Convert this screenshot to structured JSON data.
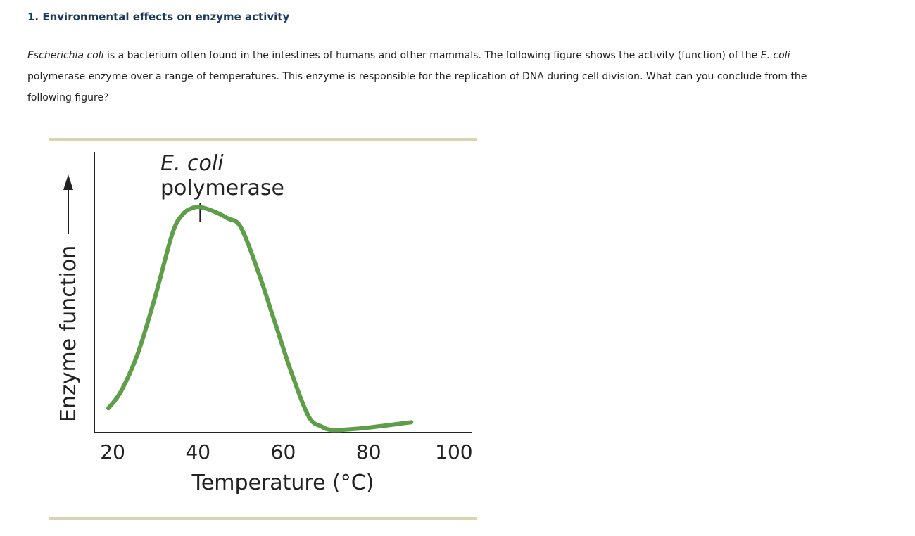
{
  "question": {
    "title": "1. Environmental effects on enzyme activity",
    "body": {
      "p1": "Escherichia coli",
      "p2": " is a bacterium often found in the intestines of humans and other mammals. The following figure shows the activity (function) of the ",
      "p3": "E. coli",
      "p4": " polymerase enzyme over a range of temperatures. This enzyme is responsible for the replication of DNA during cell division. What can you conclude from the following figure?"
    }
  },
  "colors": {
    "curve": "#5e9e48",
    "frame_rule": "#dcd3b0",
    "axis": "#222222"
  },
  "chart_data": {
    "type": "line",
    "title": "",
    "xlabel": "Temperature (°C)",
    "ylabel": "Enzyme function",
    "y_tick_labels": false,
    "xlim": [
      10,
      110
    ],
    "ylim": [
      0,
      1.2
    ],
    "x_ticks": [
      20,
      40,
      60,
      80,
      100
    ],
    "x_tick_labels": [
      "20",
      "40",
      "60",
      "80",
      "100"
    ],
    "annotations": [
      {
        "line1": "E. coli",
        "line2": "polymerase",
        "x": 40.5
      }
    ],
    "series": [
      {
        "x": [
          19,
          22,
          26,
          30,
          34,
          36.5,
          39,
          41,
          44,
          47,
          50,
          54,
          58,
          62,
          66,
          69,
          71,
          74,
          80,
          90
        ],
        "y": [
          0.1,
          0.18,
          0.36,
          0.62,
          0.91,
          1.0,
          1.03,
          1.03,
          1.01,
          0.98,
          0.94,
          0.74,
          0.5,
          0.26,
          0.06,
          0.015,
          0.0,
          0.0,
          0.01,
          0.035
        ]
      }
    ]
  }
}
